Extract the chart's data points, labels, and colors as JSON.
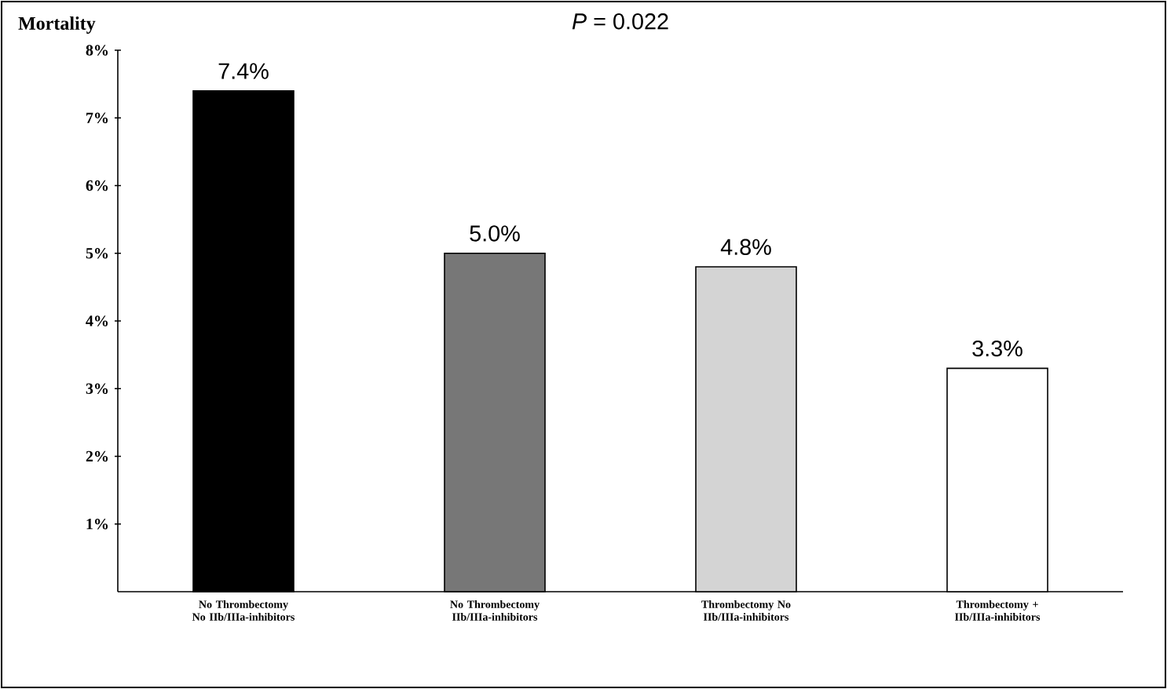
{
  "chart_data": {
    "type": "bar",
    "title": "*P* = 0.022",
    "ylabel": "Mortality",
    "categories": [
      "No Thrombectomy No IIb/IIIa-inhibitors",
      "No Thrombectomy IIb/IIIa-inhibitors",
      "Thrombectomy No IIb/IIIa-inhibitors",
      "Thrombectomy + IIb/IIIa-inhibitors"
    ],
    "values": [
      7.4,
      5.0,
      4.8,
      3.3
    ],
    "value_labels": [
      "7.4%",
      "5.0%",
      "4.8%",
      "3.3%"
    ],
    "colors": [
      "#000000",
      "#777777",
      "#d4d4d4",
      "#ffffff"
    ],
    "ylim": [
      0,
      8
    ],
    "yticks": [
      {
        "value": 1,
        "label": "1%"
      },
      {
        "value": 2,
        "label": "2%"
      },
      {
        "value": 3,
        "label": "3%"
      },
      {
        "value": 4,
        "label": "4%"
      },
      {
        "value": 5,
        "label": "5%"
      },
      {
        "value": 6,
        "label": "6%"
      },
      {
        "value": 7,
        "label": "7%"
      },
      {
        "value": 8,
        "label": "8%"
      }
    ],
    "grid": false
  }
}
